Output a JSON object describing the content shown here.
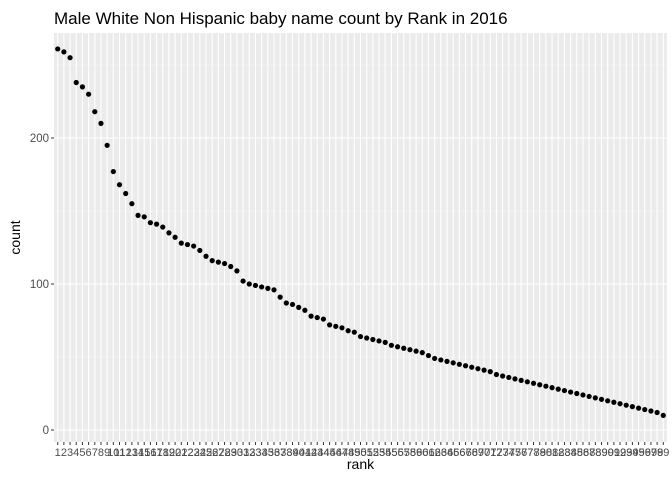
{
  "chart_data": {
    "type": "scatter",
    "title": "Male White Non Hispanic baby name count by Rank in 2016",
    "xlabel": "rank",
    "ylabel": "count",
    "x_axis": "discrete",
    "ylim": [
      0,
      268
    ],
    "y_ticks": [
      0,
      100,
      200
    ],
    "grid": true,
    "legend": "none",
    "colors": {
      "panel_background": "#ebebeb",
      "grid_major": "#ffffff",
      "grid_minor": "#f5f5f5",
      "point": "#000000"
    },
    "x": [
      1,
      2,
      3,
      4,
      5,
      6,
      7,
      8,
      9,
      10,
      11,
      12,
      13,
      14,
      15,
      16,
      17,
      18,
      19,
      20,
      21,
      22,
      23,
      24,
      25,
      26,
      27,
      28,
      29,
      30,
      31,
      32,
      33,
      34,
      35,
      36,
      37,
      38,
      39,
      40,
      41,
      42,
      43,
      44,
      45,
      46,
      47,
      48,
      49,
      50,
      51,
      52,
      53,
      54,
      55,
      56,
      57,
      58,
      59,
      60,
      61,
      62,
      63,
      64,
      65,
      66,
      67,
      68,
      69,
      70,
      71,
      72,
      73,
      74,
      75,
      76,
      77,
      78,
      79,
      80,
      81,
      82,
      83,
      84,
      85,
      86,
      87,
      88,
      89,
      90,
      91,
      92,
      93,
      94,
      95,
      96,
      97,
      98,
      99
    ],
    "values": [
      261,
      259,
      255,
      238,
      235,
      230,
      218,
      210,
      195,
      177,
      168,
      162,
      155,
      147,
      146,
      142,
      141,
      139,
      135,
      132,
      128,
      127,
      126,
      123,
      119,
      116,
      115,
      114,
      112,
      109,
      102,
      100,
      99,
      98,
      97,
      96,
      91,
      87,
      86,
      84,
      82,
      78,
      77,
      76,
      72,
      71,
      70,
      68,
      67,
      64,
      63,
      62,
      61,
      60,
      58,
      57,
      56,
      55,
      54,
      53,
      51,
      49,
      48,
      47,
      46,
      45,
      44,
      43,
      42,
      41,
      40,
      38,
      37,
      36,
      35,
      34,
      33,
      32,
      31,
      30,
      29,
      28,
      27,
      26,
      25,
      24,
      23,
      22,
      21,
      20,
      19,
      18,
      17,
      16,
      15,
      14,
      13,
      12,
      10
    ]
  }
}
